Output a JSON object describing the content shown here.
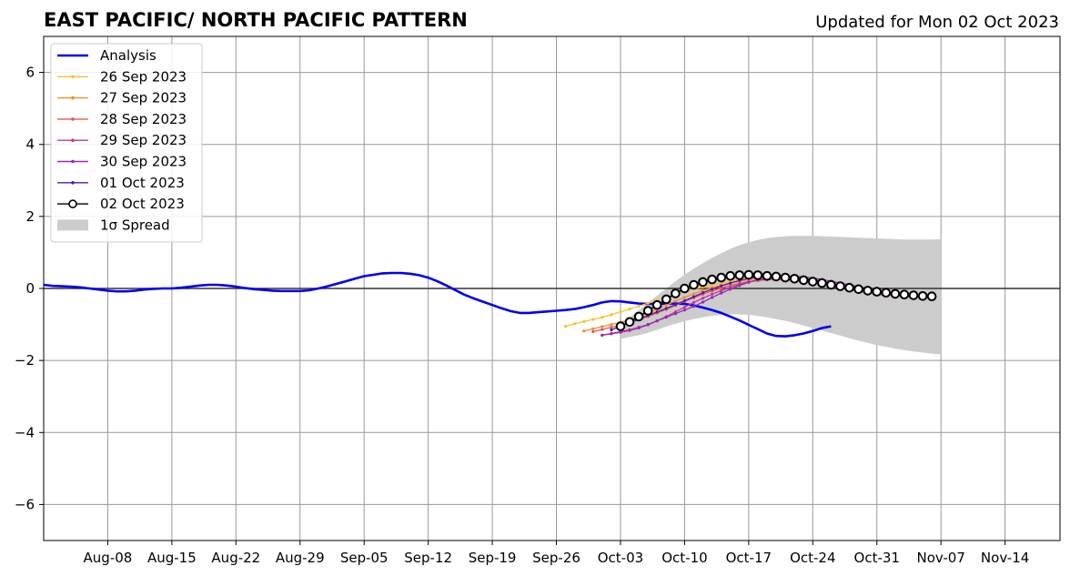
{
  "chart_data": {
    "type": "line",
    "title": "EAST PACIFIC/ NORTH PACIFIC PATTERN",
    "updated": "Updated for Mon 02 Oct 2023",
    "xlim": [
      "2023-08-01",
      "2023-11-20"
    ],
    "ylim": [
      -7,
      7
    ],
    "grid": true,
    "legend_position": "upper-left",
    "x_tick_dates": [
      "2023-08-08",
      "2023-08-15",
      "2023-08-22",
      "2023-08-29",
      "2023-09-05",
      "2023-09-12",
      "2023-09-19",
      "2023-09-26",
      "2023-10-03",
      "2023-10-10",
      "2023-10-17",
      "2023-10-24",
      "2023-10-31",
      "2023-11-07",
      "2023-11-14"
    ],
    "x_tick_labels": [
      "Aug-08",
      "Aug-15",
      "Aug-22",
      "Aug-29",
      "Sep-05",
      "Sep-12",
      "Sep-19",
      "Sep-26",
      "Oct-03",
      "Oct-10",
      "Oct-17",
      "Oct-24",
      "Oct-31",
      "Nov-07",
      "Nov-14"
    ],
    "y_ticks": [
      -6,
      -4,
      -2,
      0,
      2,
      4,
      6
    ],
    "y_tick_labels": [
      "−6",
      "−4",
      "−2",
      "0",
      "2",
      "4",
      "6"
    ],
    "analysis": {
      "name": "Analysis",
      "color": "#0000ee",
      "start_date": "2023-08-01",
      "values": [
        0.1,
        0.07,
        0.06,
        0.05,
        0.03,
        0.0,
        -0.03,
        -0.06,
        -0.08,
        -0.08,
        -0.06,
        -0.03,
        -0.01,
        0.0,
        0.0,
        0.02,
        0.05,
        0.08,
        0.1,
        0.1,
        0.08,
        0.05,
        0.01,
        -0.02,
        -0.04,
        -0.06,
        -0.07,
        -0.07,
        -0.07,
        -0.05,
        0.0,
        0.06,
        0.13,
        0.2,
        0.27,
        0.34,
        0.38,
        0.42,
        0.43,
        0.43,
        0.41,
        0.37,
        0.3,
        0.2,
        0.08,
        -0.05,
        -0.18,
        -0.28,
        -0.37,
        -0.46,
        -0.55,
        -0.63,
        -0.68,
        -0.68,
        -0.66,
        -0.64,
        -0.62,
        -0.6,
        -0.57,
        -0.52,
        -0.46,
        -0.39,
        -0.35,
        -0.36,
        -0.39,
        -0.42,
        -0.43,
        -0.43,
        -0.42,
        -0.42,
        -0.43,
        -0.47,
        -0.53,
        -0.6,
        -0.68,
        -0.78,
        -0.89,
        -1.01,
        -1.13,
        -1.25,
        -1.32,
        -1.33,
        -1.3,
        -1.25,
        -1.18,
        -1.1,
        -1.05
      ]
    },
    "forecasts": [
      {
        "name": "26 Sep 2023",
        "color": "#fbc02d",
        "start_date": "2023-09-27",
        "values": [
          -1.05,
          -0.98,
          -0.92,
          -0.86,
          -0.8,
          -0.73,
          -0.65,
          -0.57,
          -0.49,
          -0.41,
          -0.33,
          -0.25,
          -0.17,
          -0.09,
          -0.02,
          0.04,
          0.1,
          0.15,
          0.2,
          0.24,
          0.27,
          0.29,
          0.3,
          0.3,
          0.28,
          0.26,
          0.23,
          0.19,
          0.15,
          0.1,
          0.05,
          0.0,
          -0.05,
          -0.1,
          -0.14,
          -0.18,
          -0.22
        ]
      },
      {
        "name": "27 Sep 2023",
        "color": "#f28e2b",
        "start_date": "2023-09-29",
        "values": [
          -1.18,
          -1.12,
          -1.06,
          -1.0,
          -0.94,
          -0.87,
          -0.78,
          -0.68,
          -0.57,
          -0.46,
          -0.35,
          -0.25,
          -0.15,
          -0.06,
          0.02,
          0.09,
          0.15,
          0.2,
          0.24,
          0.27,
          0.28,
          0.28,
          0.27,
          0.25,
          0.22,
          0.18,
          0.14,
          0.1,
          0.05,
          0.0,
          -0.05,
          -0.09,
          -0.13,
          -0.17,
          -0.2
        ]
      },
      {
        "name": "28 Sep 2023",
        "color": "#e15759",
        "start_date": "2023-09-30",
        "values": [
          -1.2,
          -1.14,
          -1.08,
          -1.02,
          -0.95,
          -0.87,
          -0.78,
          -0.68,
          -0.58,
          -0.47,
          -0.36,
          -0.26,
          -0.16,
          -0.07,
          0.01,
          0.08,
          0.14,
          0.19,
          0.22,
          0.24,
          0.25,
          0.24,
          0.22,
          0.19,
          0.15,
          0.11,
          0.06,
          0.02,
          -0.03,
          -0.08,
          -0.12,
          -0.16,
          -0.2
        ]
      },
      {
        "name": "29 Sep 2023",
        "color": "#c2379a",
        "start_date": "2023-10-01",
        "values": [
          -1.3,
          -1.26,
          -1.22,
          -1.17,
          -1.1,
          -1.01,
          -0.9,
          -0.78,
          -0.65,
          -0.52,
          -0.39,
          -0.27,
          -0.16,
          -0.06,
          0.03,
          0.11,
          0.18,
          0.23,
          0.27,
          0.29,
          0.3,
          0.29,
          0.27,
          0.24,
          0.2,
          0.15,
          0.1,
          0.05,
          0.0,
          -0.05,
          -0.1,
          -0.14,
          -0.18
        ]
      },
      {
        "name": "30 Sep 2023",
        "color": "#9c27b0",
        "start_date": "2023-10-01",
        "values": [
          -1.3,
          -1.25,
          -1.2,
          -1.15,
          -1.08,
          -1.0,
          -0.9,
          -0.8,
          -0.7,
          -0.6,
          -0.5,
          -0.38,
          -0.25,
          -0.13,
          -0.02,
          0.08,
          0.17,
          0.24,
          0.29,
          0.32,
          0.34,
          0.34,
          0.32,
          0.29,
          0.25,
          0.2,
          0.15,
          0.1,
          0.05,
          0.0,
          -0.05,
          -0.09,
          -0.13
        ]
      },
      {
        "name": "01 Oct 2023",
        "color": "#5a1aa6",
        "start_date": "2023-10-02",
        "values": [
          -1.15,
          -1.05,
          -0.95,
          -0.85,
          -0.75,
          -0.65,
          -0.55,
          -0.45,
          -0.34,
          -0.23,
          -0.12,
          -0.02,
          0.07,
          0.15,
          0.22,
          0.28,
          0.32,
          0.34,
          0.34,
          0.33,
          0.31,
          0.28,
          0.24,
          0.2,
          0.15,
          0.1,
          0.05,
          0.0,
          -0.05,
          -0.09,
          -0.13,
          -0.17
        ]
      }
    ],
    "main_forecast": {
      "name": "02 Oct 2023",
      "color": "#000000",
      "start_date": "2023-10-03",
      "values": [
        -1.05,
        -0.93,
        -0.78,
        -0.62,
        -0.46,
        -0.3,
        -0.14,
        0.0,
        0.1,
        0.18,
        0.25,
        0.3,
        0.35,
        0.37,
        0.38,
        0.37,
        0.35,
        0.33,
        0.3,
        0.27,
        0.23,
        0.19,
        0.15,
        0.1,
        0.06,
        0.02,
        -0.02,
        -0.06,
        -0.09,
        -0.12,
        -0.15,
        -0.17,
        -0.19,
        -0.21,
        -0.22
      ]
    },
    "spread": {
      "name": "1σ Spread",
      "color": "#cccccc",
      "start_date": "2023-10-03",
      "upper": [
        -0.98,
        -0.8,
        -0.6,
        -0.4,
        -0.2,
        0.0,
        0.2,
        0.38,
        0.55,
        0.7,
        0.85,
        0.98,
        1.1,
        1.2,
        1.28,
        1.35,
        1.4,
        1.43,
        1.45,
        1.46,
        1.46,
        1.46,
        1.45,
        1.44,
        1.43,
        1.42,
        1.41,
        1.4,
        1.39,
        1.38,
        1.37,
        1.36,
        1.36,
        1.36,
        1.36,
        1.37
      ],
      "lower": [
        -1.4,
        -1.35,
        -1.3,
        -1.23,
        -1.15,
        -1.06,
        -0.98,
        -0.91,
        -0.85,
        -0.8,
        -0.76,
        -0.73,
        -0.72,
        -0.72,
        -0.73,
        -0.76,
        -0.8,
        -0.85,
        -0.9,
        -0.96,
        -1.03,
        -1.1,
        -1.17,
        -1.24,
        -1.31,
        -1.38,
        -1.45,
        -1.51,
        -1.57,
        -1.62,
        -1.67,
        -1.71,
        -1.75,
        -1.78,
        -1.81,
        -1.83
      ]
    }
  }
}
